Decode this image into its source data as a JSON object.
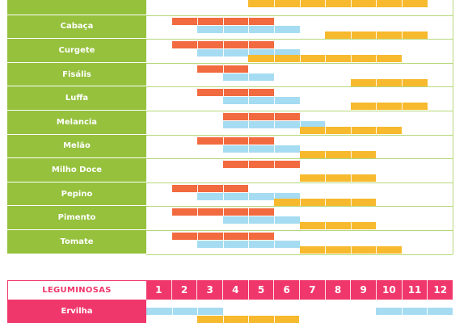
{
  "sections": [
    {
      "id": "solanaceas",
      "rows": [
        {
          "name": "",
          "periods": [
            {
              "kind": "harvest",
              "start": 5,
              "end": 11
            }
          ],
          "truncated": true
        },
        {
          "name": "Cabaça",
          "periods": [
            {
              "kind": "sow",
              "start": 2,
              "end": 5
            },
            {
              "kind": "plant",
              "start": 3,
              "end": 6
            },
            {
              "kind": "harvest",
              "start": 8,
              "end": 11
            }
          ]
        },
        {
          "name": "Curgete",
          "periods": [
            {
              "kind": "sow",
              "start": 2,
              "end": 5
            },
            {
              "kind": "plant",
              "start": 3,
              "end": 6
            },
            {
              "kind": "harvest",
              "start": 5,
              "end": 10
            }
          ]
        },
        {
          "name": "Fisális",
          "periods": [
            {
              "kind": "sow",
              "start": 3,
              "end": 4
            },
            {
              "kind": "plant",
              "start": 4,
              "end": 5
            },
            {
              "kind": "harvest",
              "start": 9,
              "end": 11
            }
          ]
        },
        {
          "name": "Luffa",
          "periods": [
            {
              "kind": "sow",
              "start": 3,
              "end": 5
            },
            {
              "kind": "plant",
              "start": 4,
              "end": 6
            },
            {
              "kind": "harvest",
              "start": 9,
              "end": 11
            }
          ]
        },
        {
          "name": "Melancia",
          "periods": [
            {
              "kind": "sow",
              "start": 4,
              "end": 6
            },
            {
              "kind": "plant",
              "start": 4,
              "end": 7
            },
            {
              "kind": "harvest",
              "start": 7,
              "end": 10
            }
          ]
        },
        {
          "name": "Melão",
          "periods": [
            {
              "kind": "sow",
              "start": 3,
              "end": 5
            },
            {
              "kind": "plant",
              "start": 4,
              "end": 6
            },
            {
              "kind": "harvest",
              "start": 7,
              "end": 9
            }
          ]
        },
        {
          "name": "Milho Doce",
          "periods": [
            {
              "kind": "sow",
              "start": 4,
              "end": 6
            },
            {
              "kind": "harvest",
              "start": 7,
              "end": 9
            }
          ]
        },
        {
          "name": "Pepino",
          "periods": [
            {
              "kind": "sow",
              "start": 2,
              "end": 4
            },
            {
              "kind": "plant",
              "start": 3,
              "end": 6
            },
            {
              "kind": "harvest",
              "start": 6,
              "end": 9
            }
          ]
        },
        {
          "name": "Pimento",
          "periods": [
            {
              "kind": "sow",
              "start": 2,
              "end": 5
            },
            {
              "kind": "plant",
              "start": 4,
              "end": 6
            },
            {
              "kind": "harvest",
              "start": 7,
              "end": 9
            }
          ]
        },
        {
          "name": "Tomate",
          "periods": [
            {
              "kind": "sow",
              "start": 2,
              "end": 5
            },
            {
              "kind": "plant",
              "start": 3,
              "end": 6
            },
            {
              "kind": "harvest",
              "start": 7,
              "end": 10
            }
          ]
        }
      ]
    },
    {
      "id": "leguminosas",
      "title": "LEGUMINOSAS",
      "months": [
        "1",
        "2",
        "3",
        "4",
        "5",
        "6",
        "7",
        "8",
        "9",
        "10",
        "11",
        "12"
      ],
      "rows": [
        {
          "name": "Ervilha",
          "periods": [
            {
              "kind": "plant",
              "start": 1,
              "end": 3
            },
            {
              "kind": "plant",
              "start": 10,
              "end": 12
            },
            {
              "kind": "harvest",
              "start": 3,
              "end": 6
            }
          ]
        }
      ]
    }
  ],
  "colors": {
    "green": "#95c13d",
    "pink": "#f0376b",
    "sow": "#f26a3f",
    "plant": "#a6dcf2",
    "harvest": "#f7b92e",
    "grid": "#b7d77b"
  }
}
